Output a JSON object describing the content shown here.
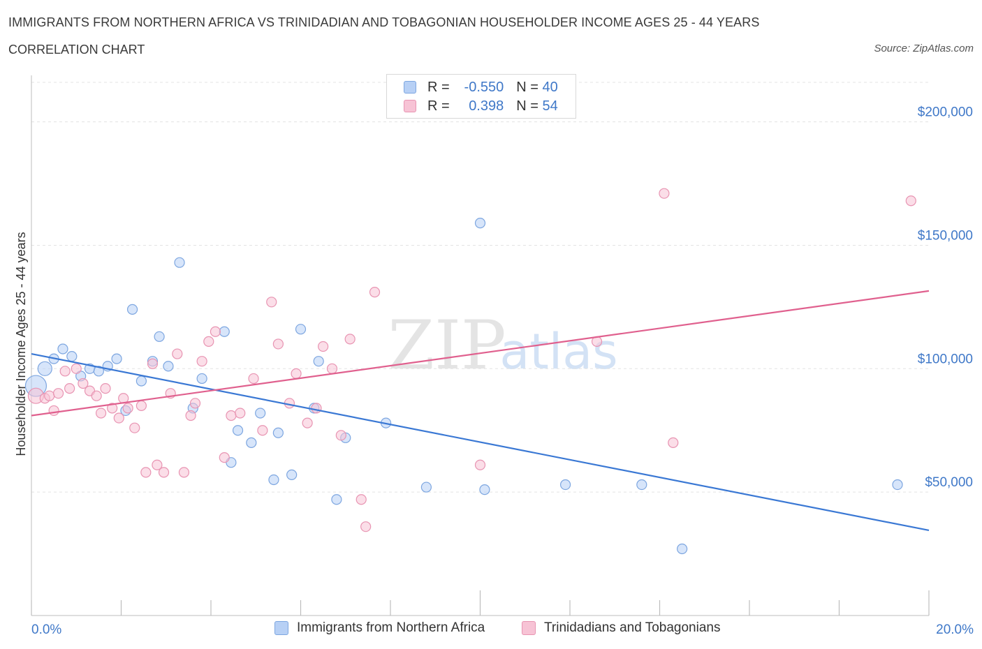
{
  "title": "IMMIGRANTS FROM NORTHERN AFRICA VS TRINIDADIAN AND TOBAGONIAN HOUSEHOLDER INCOME AGES 25 - 44 YEARS",
  "subtitle": "CORRELATION CHART",
  "source": "Source: ZipAtlas.com",
  "watermark": {
    "zip": "ZIP",
    "atlas": "atlas"
  },
  "colors": {
    "blue": "#3a78d4",
    "blue_fill": "#b7d0f5",
    "pink": "#e0608e",
    "pink_fill": "#f7c3d5",
    "grid": "#e3e3e3",
    "tick_label": "#3f78c8"
  },
  "legend": {
    "rows": [
      {
        "r_label": "R =",
        "r_value": "-0.550",
        "n_label": "N =",
        "n_value": "40"
      },
      {
        "r_label": "R =",
        "r_value": "0.398",
        "n_label": "N =",
        "n_value": "54"
      }
    ]
  },
  "bottom_legend": [
    "Immigrants from Northern Africa",
    "Trinidadians and Tobagonians"
  ],
  "chart_data": {
    "type": "scatter",
    "ylabel": "Householder Income Ages 25 - 44 years",
    "xlim": [
      0,
      20
    ],
    "ylim": [
      0,
      200000
    ],
    "x_tick_labels": [
      "0.0%",
      "20.0%"
    ],
    "y_ticks": [
      50000,
      100000,
      150000,
      200000
    ],
    "y_tick_labels": [
      "$50,000",
      "$100,000",
      "$150,000",
      "$200,000"
    ],
    "grid": true,
    "series": [
      {
        "name": "Immigrants from Northern Africa",
        "color": "#3a78d4",
        "trend": {
          "x": [
            0,
            20
          ],
          "y": [
            106000,
            34500
          ]
        },
        "points": [
          [
            0.1,
            93000,
            30
          ],
          [
            0.3,
            100000,
            20
          ],
          [
            0.5,
            104000,
            14
          ],
          [
            0.7,
            108000,
            14
          ],
          [
            0.9,
            105000,
            14
          ],
          [
            1.1,
            97000,
            14
          ],
          [
            1.3,
            100000,
            14
          ],
          [
            1.5,
            99000,
            14
          ],
          [
            1.7,
            101000,
            14
          ],
          [
            1.9,
            104000,
            14
          ],
          [
            2.1,
            83000,
            14
          ],
          [
            2.25,
            124000,
            14
          ],
          [
            2.45,
            95000,
            14
          ],
          [
            2.7,
            103000,
            14
          ],
          [
            2.85,
            113000,
            14
          ],
          [
            3.05,
            101000,
            14
          ],
          [
            3.3,
            143000,
            14
          ],
          [
            3.6,
            84000,
            14
          ],
          [
            3.8,
            96000,
            14
          ],
          [
            4.3,
            115000,
            14
          ],
          [
            4.45,
            62000,
            14
          ],
          [
            4.6,
            75000,
            14
          ],
          [
            4.9,
            70000,
            14
          ],
          [
            5.1,
            82000,
            14
          ],
          [
            5.4,
            55000,
            14
          ],
          [
            5.5,
            74000,
            14
          ],
          [
            5.8,
            57000,
            14
          ],
          [
            6.0,
            116000,
            14
          ],
          [
            6.3,
            84000,
            14
          ],
          [
            6.4,
            103000,
            14
          ],
          [
            6.8,
            47000,
            14
          ],
          [
            7.0,
            72000,
            14
          ],
          [
            7.9,
            78000,
            14
          ],
          [
            8.8,
            52000,
            14
          ],
          [
            10.0,
            159000,
            14
          ],
          [
            10.1,
            51000,
            14
          ],
          [
            11.9,
            53000,
            14
          ],
          [
            13.6,
            53000,
            14
          ],
          [
            14.5,
            27000,
            14
          ],
          [
            19.3,
            53000,
            14
          ]
        ]
      },
      {
        "name": "Trinidadians and Tobagonians",
        "color": "#e0608e",
        "trend": {
          "x": [
            0,
            20
          ],
          "y": [
            81000,
            131500
          ]
        },
        "points": [
          [
            0.1,
            89000,
            22
          ],
          [
            0.3,
            88000,
            14
          ],
          [
            0.4,
            89000,
            14
          ],
          [
            0.5,
            83000,
            14
          ],
          [
            0.6,
            90000,
            14
          ],
          [
            0.75,
            99000,
            14
          ],
          [
            0.85,
            92000,
            14
          ],
          [
            1.0,
            100000,
            14
          ],
          [
            1.15,
            94000,
            14
          ],
          [
            1.3,
            91000,
            14
          ],
          [
            1.45,
            89000,
            14
          ],
          [
            1.55,
            82000,
            14
          ],
          [
            1.65,
            92000,
            14
          ],
          [
            1.8,
            84000,
            14
          ],
          [
            1.95,
            80000,
            14
          ],
          [
            2.05,
            88000,
            14
          ],
          [
            2.15,
            84000,
            14
          ],
          [
            2.3,
            76000,
            14
          ],
          [
            2.45,
            85000,
            14
          ],
          [
            2.55,
            58000,
            14
          ],
          [
            2.7,
            102000,
            14
          ],
          [
            2.8,
            61000,
            14
          ],
          [
            2.95,
            58000,
            14
          ],
          [
            3.1,
            90000,
            14
          ],
          [
            3.25,
            106000,
            14
          ],
          [
            3.4,
            58000,
            14
          ],
          [
            3.55,
            81000,
            14
          ],
          [
            3.65,
            86000,
            14
          ],
          [
            3.8,
            103000,
            14
          ],
          [
            3.95,
            111000,
            14
          ],
          [
            4.1,
            115000,
            14
          ],
          [
            4.3,
            64000,
            14
          ],
          [
            4.45,
            81000,
            14
          ],
          [
            4.65,
            82000,
            14
          ],
          [
            4.95,
            96000,
            14
          ],
          [
            5.15,
            75000,
            14
          ],
          [
            5.35,
            127000,
            14
          ],
          [
            5.5,
            110000,
            14
          ],
          [
            5.75,
            86000,
            14
          ],
          [
            5.9,
            98000,
            14
          ],
          [
            6.15,
            78000,
            14
          ],
          [
            6.35,
            84000,
            14
          ],
          [
            6.5,
            109000,
            14
          ],
          [
            6.7,
            100000,
            14
          ],
          [
            6.9,
            73000,
            14
          ],
          [
            7.1,
            112000,
            14
          ],
          [
            7.35,
            47000,
            14
          ],
          [
            7.45,
            36000,
            14
          ],
          [
            7.65,
            131000,
            14
          ],
          [
            10.0,
            61000,
            14
          ],
          [
            12.6,
            111000,
            14
          ],
          [
            14.1,
            171000,
            14
          ],
          [
            14.3,
            70000,
            14
          ],
          [
            19.6,
            168000,
            14
          ]
        ]
      }
    ]
  }
}
